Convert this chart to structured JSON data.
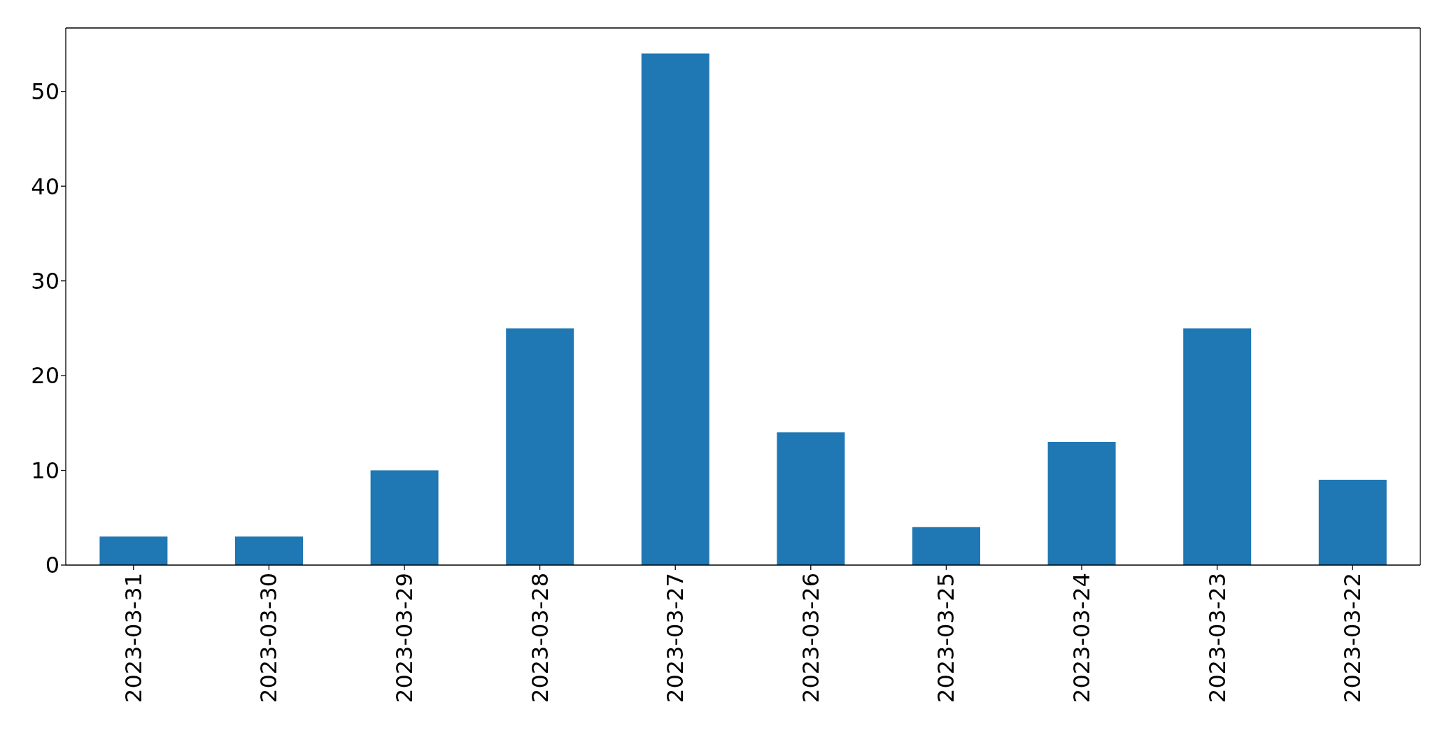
{
  "chart_data": {
    "type": "bar",
    "categories": [
      "2023-03-31",
      "2023-03-30",
      "2023-03-29",
      "2023-03-28",
      "2023-03-27",
      "2023-03-26",
      "2023-03-25",
      "2023-03-24",
      "2023-03-23",
      "2023-03-22"
    ],
    "values": [
      3,
      3,
      10,
      25,
      54,
      14,
      4,
      13,
      25,
      9
    ],
    "color": "#1f77b4",
    "ylim": [
      0,
      56.7
    ],
    "yticks": [
      0,
      10,
      20,
      30,
      40,
      50
    ]
  }
}
